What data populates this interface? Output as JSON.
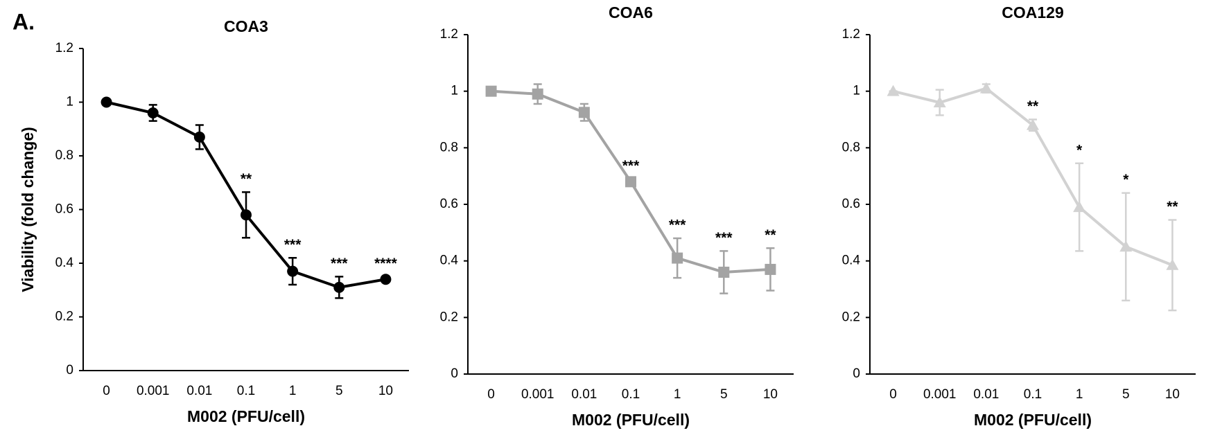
{
  "panel_label": "A.",
  "chart_data": [
    {
      "type": "line",
      "title": "COA3",
      "y_label": "Viability (fold change)",
      "x_label": "M002 (PFU/cell)",
      "categories": [
        "0",
        "0.001",
        "0.01",
        "0.1",
        "1",
        "5",
        "10"
      ],
      "series": [
        {
          "color": "#000000",
          "marker": "circle",
          "values": [
            1,
            0.96,
            0.87,
            0.58,
            0.37,
            0.31,
            0.34
          ],
          "errors": [
            0,
            0.03,
            0.045,
            0.085,
            0.05,
            0.04,
            0.01
          ],
          "annotations": [
            null,
            null,
            null,
            "**",
            "***",
            "***",
            "****"
          ]
        }
      ],
      "ylim": [
        0,
        1.2
      ],
      "yticks": [
        0,
        0.2,
        0.4,
        0.6,
        0.8,
        1,
        1.2
      ],
      "grid": false
    },
    {
      "type": "line",
      "title": "COA6",
      "x_label": "M002 (PFU/cell)",
      "categories": [
        "0",
        "0.001",
        "0.01",
        "0.1",
        "1",
        "5",
        "10"
      ],
      "series": [
        {
          "color": "#a3a3a3",
          "marker": "square",
          "values": [
            1,
            0.99,
            0.925,
            0.68,
            0.41,
            0.36,
            0.37
          ],
          "errors": [
            0.01,
            0.035,
            0.03,
            0.01,
            0.07,
            0.075,
            0.075
          ],
          "annotations": [
            null,
            null,
            null,
            "***",
            "***",
            "***",
            "**"
          ]
        }
      ],
      "ylim": [
        0,
        1.2
      ],
      "yticks": [
        0,
        0.2,
        0.4,
        0.6,
        0.8,
        1,
        1.2
      ],
      "grid": false
    },
    {
      "type": "line",
      "title": "COA129",
      "x_label": "M002 (PFU/cell)",
      "categories": [
        "0",
        "0.001",
        "0.01",
        "0.1",
        "1",
        "5",
        "10"
      ],
      "series": [
        {
          "color": "#d2d2d2",
          "marker": "triangle",
          "values": [
            1,
            0.96,
            1.01,
            0.88,
            0.59,
            0.45,
            0.385
          ],
          "errors": [
            0,
            0.045,
            0.015,
            0.02,
            0.155,
            0.19,
            0.16
          ],
          "annotations": [
            null,
            null,
            null,
            "**",
            "*",
            "*",
            "**"
          ]
        }
      ],
      "ylim": [
        0,
        1.2
      ],
      "yticks": [
        0,
        0.2,
        0.4,
        0.6,
        0.8,
        1,
        1.2
      ],
      "grid": false
    }
  ]
}
